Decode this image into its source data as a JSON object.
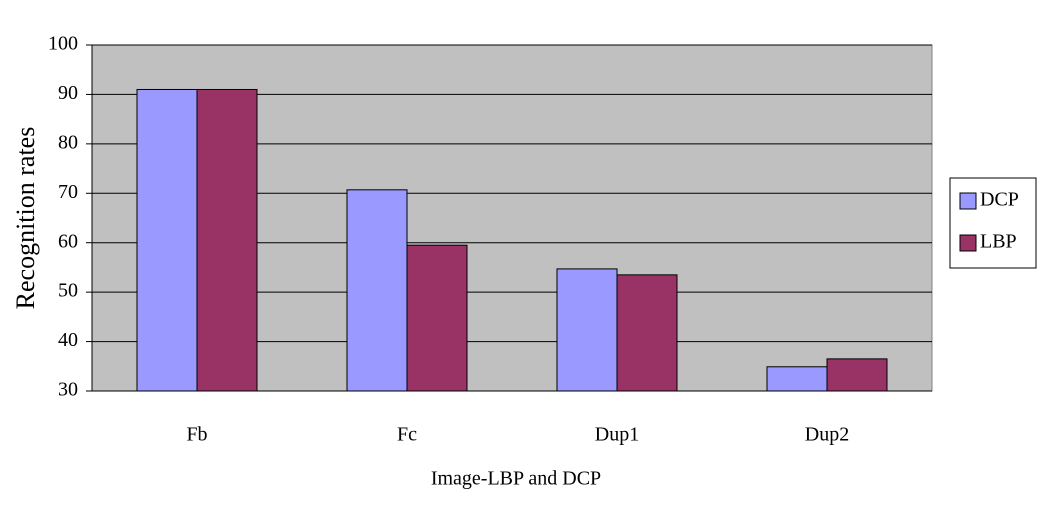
{
  "chart_data": {
    "type": "bar",
    "x_label": "Image-LBP and DCP",
    "y_label": "Recognition rates",
    "categories": [
      "Fb",
      "Fc",
      "Dup1",
      "Dup2"
    ],
    "series": [
      {
        "name": "DCP",
        "color": "#9999ff",
        "values": [
          91,
          70.7,
          54.7,
          34.9
        ]
      },
      {
        "name": "LBP",
        "color": "#993366",
        "values": [
          91,
          59.5,
          53.5,
          36.5
        ]
      }
    ],
    "ylim": [
      30,
      100
    ],
    "yticks": [
      30,
      40,
      50,
      60,
      70,
      80,
      90,
      100
    ],
    "grid": true,
    "legend": "right"
  }
}
